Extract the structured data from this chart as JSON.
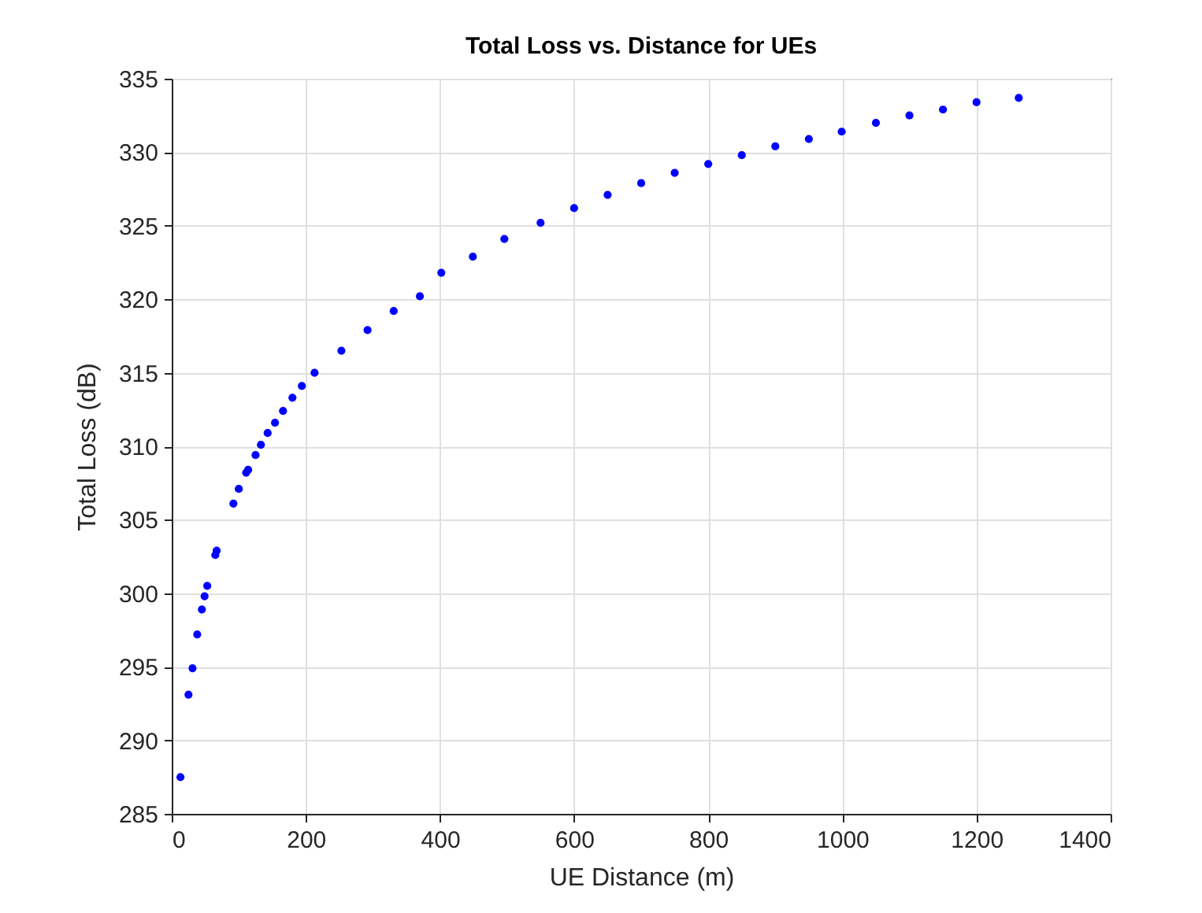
{
  "chart_data": {
    "type": "scatter",
    "title": "Total Loss vs. Distance for UEs",
    "xlabel": "UE Distance (m)",
    "ylabel": "Total Loss (dB)",
    "x": [
      13,
      25,
      31,
      38,
      45,
      49,
      53,
      65,
      67,
      92,
      100,
      111,
      114,
      125,
      133,
      143,
      154,
      166,
      180,
      194,
      213,
      253,
      292,
      331,
      370,
      402,
      449,
      496,
      550,
      600,
      650,
      700,
      750,
      800,
      850,
      900,
      950,
      999,
      1050,
      1100,
      1150,
      1200,
      1263
    ],
    "series": [
      {
        "color": "#0000ff",
        "values": [
          287.5,
          293.1,
          294.9,
          297.2,
          298.9,
          299.8,
          300.5,
          302.6,
          302.9,
          306.1,
          307.1,
          308.2,
          308.4,
          309.4,
          310.1,
          310.9,
          311.6,
          312.4,
          313.3,
          314.1,
          315.0,
          316.5,
          317.9,
          319.2,
          320.2,
          321.8,
          322.9,
          324.1,
          325.2,
          326.2,
          327.1,
          327.9,
          328.6,
          329.2,
          329.8,
          330.4,
          330.9,
          331.4,
          332.0,
          332.5,
          332.9,
          333.4,
          333.7
        ]
      }
    ],
    "xlim": [
      0,
      1400
    ],
    "xticks": [
      0,
      200,
      400,
      600,
      800,
      1000,
      1200,
      1400
    ],
    "ylim": [
      285,
      335
    ],
    "yticks": [
      285,
      290,
      295,
      300,
      305,
      310,
      315,
      320,
      325,
      330,
      335
    ],
    "grid": true,
    "marker": "circle"
  }
}
